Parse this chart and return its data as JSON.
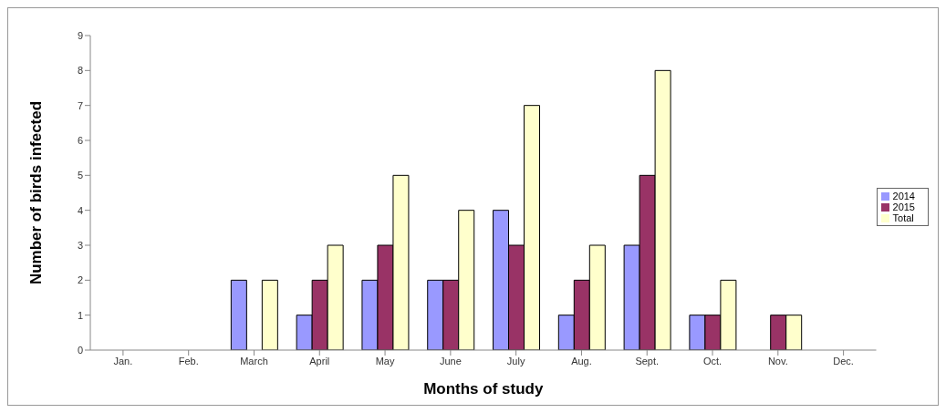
{
  "chart_data": {
    "type": "bar",
    "xlabel": "Months of study",
    "ylabel": "Number of birds infected",
    "categories": [
      "Jan.",
      "Feb.",
      "March",
      "April",
      "May",
      "June",
      "July",
      "Aug.",
      "Sept.",
      "Oct.",
      "Nov.",
      "Dec."
    ],
    "series": [
      {
        "name": "2014",
        "color": "#9999ff",
        "values": [
          0,
          0,
          2,
          1,
          2,
          2,
          4,
          1,
          3,
          1,
          0,
          0
        ]
      },
      {
        "name": "2015",
        "color": "#993366",
        "values": [
          0,
          0,
          0,
          2,
          3,
          2,
          3,
          2,
          5,
          1,
          1,
          0
        ]
      },
      {
        "name": "Total",
        "color": "#ffffcc",
        "values": [
          0,
          0,
          2,
          3,
          5,
          4,
          7,
          3,
          8,
          2,
          1,
          0
        ]
      }
    ],
    "ylim": [
      0,
      9
    ],
    "yticks": [
      0,
      1,
      2,
      3,
      4,
      5,
      6,
      7,
      8,
      9
    ],
    "grid": false,
    "legend": "right"
  }
}
